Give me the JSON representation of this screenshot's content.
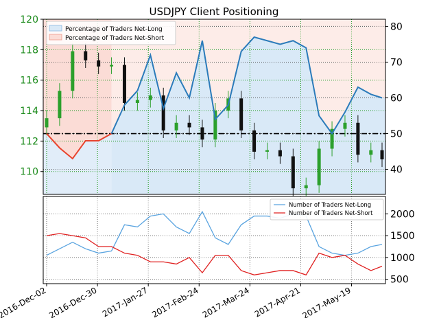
{
  "title": "USDJPY Client Positioning",
  "colors": {
    "long_line": "#2b7bba",
    "long_fill": "#d9e9f7",
    "short_line": "#e8432d",
    "short_fill": "#fbdcd6",
    "price_up": "#2ca02c",
    "price_down": "#111111",
    "grid_green": "#1f9a1f",
    "grid_black": "#555555",
    "left_axis_text": "#1a8a1a",
    "count_long": "#5aa4e0",
    "count_short": "#e02020"
  },
  "chart_data": [
    {
      "type": "line",
      "name": "positioning-panel",
      "title": "USDJPY Client Positioning",
      "x_tick_labels": [
        "2016-Dec-02",
        "2016-Dec-30",
        "2017-Jan-27",
        "2017-Feb-24",
        "2017-Mar-24",
        "2017-Apr-21",
        "2017-May-19"
      ],
      "left_axis": {
        "label": "",
        "ticks": [
          110,
          112,
          114,
          116,
          118,
          120
        ],
        "range": [
          108.5,
          120
        ]
      },
      "right_axis": {
        "label": "",
        "ticks": [
          40,
          50,
          60,
          70,
          80
        ],
        "range": [
          33,
          82
        ]
      },
      "reference_line": {
        "value": 50,
        "axis": "right",
        "style": "dash-dot"
      },
      "legend": {
        "placement": "top-left",
        "entries": [
          "Percentage of Traders Net-Long",
          "Percentage of Traders Net-Short"
        ]
      },
      "series": [
        {
          "name": "Percentage of Traders Net-Long",
          "axis": "right",
          "x": [
            "2016-12-02",
            "2016-12-09",
            "2016-12-16",
            "2016-12-23",
            "2016-12-30",
            "2017-01-06",
            "2017-01-13",
            "2017-01-20",
            "2017-01-27",
            "2017-02-03",
            "2017-02-10",
            "2017-02-17",
            "2017-02-24",
            "2017-03-03",
            "2017-03-10",
            "2017-03-17",
            "2017-03-24",
            "2017-03-31",
            "2017-04-07",
            "2017-04-14",
            "2017-04-21",
            "2017-04-28",
            "2017-05-05",
            "2017-05-12",
            "2017-05-19",
            "2017-05-26",
            "2017-06-01"
          ],
          "values": [
            null,
            null,
            null,
            null,
            null,
            50,
            58,
            62,
            72,
            57,
            67,
            60,
            76,
            54,
            58,
            73,
            77,
            76,
            75,
            76,
            74,
            55,
            50,
            56,
            63,
            61,
            60
          ]
        },
        {
          "name": "Percentage of Traders Net-Short",
          "axis": "right",
          "x": [
            "2016-12-02",
            "2016-12-09",
            "2016-12-16",
            "2016-12-23",
            "2016-12-30",
            "2017-01-06"
          ],
          "values": [
            50,
            46,
            43,
            48,
            48,
            50
          ]
        },
        {
          "name": "USDJPY",
          "type": "ohlc",
          "axis": "left",
          "x": [
            "2016-12-02",
            "2016-12-09",
            "2016-12-16",
            "2016-12-23",
            "2016-12-30",
            "2017-01-06",
            "2017-01-13",
            "2017-01-20",
            "2017-01-27",
            "2017-02-03",
            "2017-02-10",
            "2017-02-17",
            "2017-02-24",
            "2017-03-03",
            "2017-03-10",
            "2017-03-17",
            "2017-03-24",
            "2017-03-31",
            "2017-04-07",
            "2017-04-14",
            "2017-04-21",
            "2017-04-28",
            "2017-05-05",
            "2017-05-12",
            "2017-05-19",
            "2017-05-26",
            "2017-06-01"
          ],
          "close": [
            113.5,
            115.3,
            117.9,
            117.3,
            116.9,
            117.0,
            114.5,
            114.7,
            115.0,
            112.7,
            113.2,
            112.9,
            112.1,
            114.0,
            114.8,
            112.7,
            111.3,
            111.4,
            111.0,
            108.9,
            109.1,
            111.5,
            112.8,
            113.2,
            111.1,
            111.4,
            110.8
          ]
        }
      ]
    },
    {
      "type": "line",
      "name": "count-panel",
      "right_axis": {
        "label": "",
        "ticks": [
          500,
          1000,
          1500,
          2000
        ],
        "range": [
          400,
          2400
        ]
      },
      "legend": {
        "placement": "top-right",
        "entries": [
          "Number of Traders Net-Long",
          "Number of Traders Net-Short"
        ]
      },
      "series": [
        {
          "name": "Number of Traders Net-Long",
          "x": [
            "2016-12-02",
            "2016-12-09",
            "2016-12-16",
            "2016-12-23",
            "2016-12-30",
            "2017-01-06",
            "2017-01-13",
            "2017-01-20",
            "2017-01-27",
            "2017-02-03",
            "2017-02-10",
            "2017-02-17",
            "2017-02-24",
            "2017-03-03",
            "2017-03-10",
            "2017-03-17",
            "2017-03-24",
            "2017-03-31",
            "2017-04-07",
            "2017-04-14",
            "2017-04-21",
            "2017-04-28",
            "2017-05-05",
            "2017-05-12",
            "2017-05-19",
            "2017-05-26",
            "2017-06-01"
          ],
          "values": [
            1050,
            1200,
            1350,
            1200,
            1100,
            1150,
            1750,
            1700,
            1950,
            2000,
            1700,
            1550,
            2050,
            1450,
            1300,
            1750,
            1950,
            1950,
            1900,
            2000,
            1950,
            1250,
            1100,
            1050,
            1100,
            1250,
            1300
          ]
        },
        {
          "name": "Number of Traders Net-Short",
          "x": [
            "2016-12-02",
            "2016-12-09",
            "2016-12-16",
            "2016-12-23",
            "2016-12-30",
            "2017-01-06",
            "2017-01-13",
            "2017-01-20",
            "2017-01-27",
            "2017-02-03",
            "2017-02-10",
            "2017-02-17",
            "2017-02-24",
            "2017-03-03",
            "2017-03-10",
            "2017-03-17",
            "2017-03-24",
            "2017-03-31",
            "2017-04-07",
            "2017-04-14",
            "2017-04-21",
            "2017-04-28",
            "2017-05-05",
            "2017-05-12",
            "2017-05-19",
            "2017-05-26",
            "2017-06-01"
          ],
          "values": [
            1500,
            1550,
            1500,
            1450,
            1250,
            1250,
            1100,
            1050,
            900,
            900,
            850,
            1000,
            650,
            1050,
            1050,
            700,
            600,
            650,
            700,
            700,
            600,
            1100,
            1000,
            1050,
            850,
            700,
            800
          ]
        }
      ]
    }
  ]
}
